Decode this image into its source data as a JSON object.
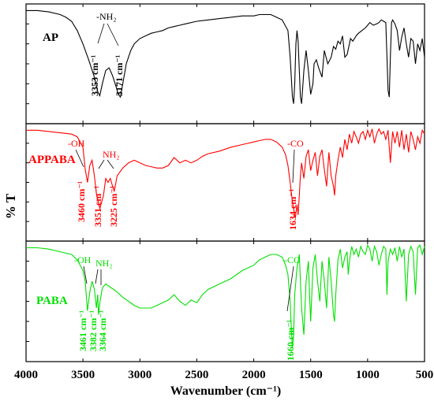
{
  "chart_data": {
    "type": "line",
    "xlabel": "Wavenumber (cm⁻¹)",
    "ylabel": "% T",
    "xlim": [
      4000,
      500
    ],
    "xticks": [
      "4000",
      "3500",
      "3000",
      "2500",
      "2000",
      "1500",
      "1000",
      "500"
    ],
    "grid": false,
    "panels": [
      {
        "name": "AP",
        "color": "#000000",
        "series": {
          "x": [
            4000,
            3900,
            3800,
            3700,
            3650,
            3600,
            3550,
            3500,
            3450,
            3400,
            3370,
            3353,
            3330,
            3300,
            3270,
            3240,
            3210,
            3190,
            3171,
            3150,
            3120,
            3080,
            3050,
            3000,
            2950,
            2900,
            2850,
            2800,
            2750,
            2700,
            2650,
            2600,
            2500,
            2400,
            2300,
            2200,
            2100,
            2000,
            1950,
            1900,
            1850,
            1800,
            1750,
            1700,
            1680,
            1660,
            1650,
            1640,
            1630,
            1620,
            1610,
            1600,
            1590,
            1580,
            1560,
            1540,
            1520,
            1500,
            1480,
            1470,
            1450,
            1430,
            1400,
            1380,
            1350,
            1320,
            1300,
            1280,
            1260,
            1240,
            1220,
            1200,
            1180,
            1160,
            1150,
            1130,
            1100,
            1080,
            1050,
            1020,
            1000,
            980,
            950,
            920,
            900,
            880,
            860,
            840,
            830,
            820,
            810,
            800,
            790,
            780,
            760,
            740,
            720,
            700,
            680,
            660,
            640,
            620,
            600,
            580,
            560,
            540,
            520,
            500
          ],
          "y": [
            95,
            95,
            94,
            92,
            90,
            87,
            80,
            70,
            58,
            45,
            34,
            31,
            40,
            50,
            52,
            46,
            38,
            32,
            30,
            40,
            55,
            65,
            70,
            74,
            76,
            78,
            79,
            80,
            82,
            83,
            84,
            85,
            87,
            88,
            89,
            90,
            91,
            91,
            92,
            92,
            92,
            90,
            88,
            80,
            60,
            30,
            25,
            40,
            70,
            80,
            72,
            50,
            30,
            25,
            50,
            65,
            50,
            32,
            40,
            55,
            58,
            52,
            45,
            65,
            55,
            60,
            68,
            66,
            72,
            70,
            76,
            60,
            62,
            70,
            74,
            72,
            76,
            78,
            80,
            82,
            84,
            86,
            84,
            85,
            86,
            88,
            87,
            86,
            60,
            35,
            30,
            60,
            86,
            88,
            85,
            80,
            65,
            75,
            82,
            70,
            60,
            74,
            72,
            55,
            70,
            65,
            74,
            60
          ]
        },
        "annotations": [
          {
            "text": "-NH₂"
          },
          {
            "text": "3353 cm⁻¹"
          },
          {
            "text": "3171 cm⁻¹"
          }
        ]
      },
      {
        "name": "APPABA",
        "color": "#ff0000",
        "series": {
          "x": [
            4000,
            3900,
            3800,
            3700,
            3600,
            3550,
            3500,
            3480,
            3460,
            3440,
            3420,
            3400,
            3380,
            3351,
            3320,
            3300,
            3280,
            3260,
            3240,
            3225,
            3200,
            3150,
            3100,
            3050,
            3000,
            2950,
            2900,
            2850,
            2800,
            2750,
            2700,
            2650,
            2600,
            2550,
            2500,
            2450,
            2400,
            2300,
            2200,
            2100,
            2000,
            1950,
            1900,
            1850,
            1800,
            1750,
            1720,
            1700,
            1680,
            1660,
            1650,
            1640,
            1634,
            1620,
            1610,
            1600,
            1590,
            1580,
            1560,
            1540,
            1520,
            1500,
            1480,
            1460,
            1440,
            1420,
            1400,
            1380,
            1360,
            1340,
            1320,
            1300,
            1290,
            1280,
            1260,
            1240,
            1220,
            1200,
            1180,
            1160,
            1140,
            1120,
            1100,
            1080,
            1060,
            1040,
            1020,
            1000,
            980,
            960,
            940,
            920,
            900,
            880,
            860,
            840,
            820,
            800,
            780,
            760,
            740,
            720,
            700,
            680,
            660,
            640,
            620,
            600,
            580,
            560,
            540,
            520,
            500
          ],
          "y": [
            95,
            95,
            94,
            93,
            92,
            90,
            82,
            65,
            55,
            68,
            72,
            60,
            45,
            35,
            45,
            58,
            55,
            58,
            52,
            48,
            60,
            66,
            70,
            72,
            70,
            68,
            67,
            66,
            66,
            68,
            74,
            70,
            72,
            70,
            72,
            75,
            77,
            79,
            82,
            84,
            86,
            87,
            88,
            88,
            86,
            82,
            76,
            68,
            55,
            40,
            35,
            30,
            28,
            38,
            30,
            45,
            60,
            70,
            58,
            75,
            80,
            64,
            72,
            78,
            60,
            75,
            80,
            65,
            52,
            78,
            60,
            52,
            45,
            60,
            72,
            82,
            74,
            88,
            80,
            92,
            85,
            94,
            90,
            85,
            92,
            94,
            88,
            95,
            90,
            96,
            85,
            92,
            96,
            92,
            94,
            88,
            95,
            70,
            94,
            85,
            94,
            82,
            95,
            80,
            92,
            78,
            94,
            88,
            80,
            90,
            85,
            95,
            92
          ]
        },
        "annotations": [
          {
            "text": "-OH"
          },
          {
            "text": "NH₂"
          },
          {
            "text": "-CO"
          },
          {
            "text": "3460 cm⁻¹"
          },
          {
            "text": "3351 cm⁻¹"
          },
          {
            "text": "3225 cm⁻¹"
          },
          {
            "text": "1634 cm⁻¹"
          }
        ]
      },
      {
        "name": "PABA",
        "color": "#00e000",
        "series": {
          "x": [
            4000,
            3900,
            3800,
            3700,
            3600,
            3550,
            3500,
            3480,
            3461,
            3440,
            3420,
            3400,
            3382,
            3370,
            3364,
            3350,
            3330,
            3300,
            3250,
            3200,
            3150,
            3100,
            3050,
            3000,
            2950,
            2900,
            2850,
            2800,
            2750,
            2700,
            2650,
            2600,
            2550,
            2500,
            2450,
            2400,
            2300,
            2200,
            2100,
            2000,
            1950,
            1900,
            1850,
            1800,
            1750,
            1720,
            1700,
            1680,
            1670,
            1660,
            1650,
            1640,
            1620,
            1600,
            1590,
            1580,
            1560,
            1540,
            1520,
            1510,
            1500,
            1480,
            1460,
            1440,
            1420,
            1400,
            1380,
            1360,
            1340,
            1320,
            1300,
            1290,
            1280,
            1260,
            1240,
            1220,
            1200,
            1180,
            1170,
            1160,
            1140,
            1120,
            1100,
            1080,
            1060,
            1040,
            1020,
            1000,
            980,
            960,
            940,
            920,
            900,
            880,
            860,
            840,
            830,
            820,
            800,
            780,
            760,
            740,
            720,
            700,
            680,
            660,
            640,
            620,
            600,
            580,
            560,
            540,
            520,
            500
          ],
          "y": [
            95,
            95,
            94,
            92,
            90,
            86,
            78,
            70,
            48,
            62,
            70,
            64,
            50,
            60,
            45,
            55,
            65,
            68,
            65,
            62,
            58,
            55,
            52,
            50,
            50,
            50,
            52,
            54,
            56,
            60,
            55,
            52,
            56,
            54,
            60,
            64,
            68,
            72,
            78,
            82,
            86,
            88,
            90,
            90,
            88,
            82,
            75,
            55,
            35,
            20,
            30,
            60,
            80,
            90,
            70,
            50,
            30,
            70,
            85,
            60,
            40,
            80,
            90,
            70,
            55,
            85,
            70,
            50,
            88,
            70,
            45,
            40,
            60,
            86,
            94,
            80,
            88,
            92,
            75,
            85,
            96,
            90,
            94,
            88,
            96,
            92,
            90,
            97,
            94,
            85,
            96,
            92,
            82,
            90,
            96,
            94,
            60,
            85,
            94,
            90,
            95,
            85,
            96,
            88,
            94,
            55,
            90,
            96,
            92,
            60,
            95,
            97,
            90,
            96
          ]
        },
        "annotations": [
          {
            "text": "-OH"
          },
          {
            "text": "NH₂"
          },
          {
            "text": "-CO"
          },
          {
            "text": "3461 cm⁻¹"
          },
          {
            "text": "3382 cm⁻¹"
          },
          {
            "text": "3364 cm⁻¹"
          },
          {
            "text": "1660 cm⁻¹"
          }
        ]
      }
    ]
  }
}
